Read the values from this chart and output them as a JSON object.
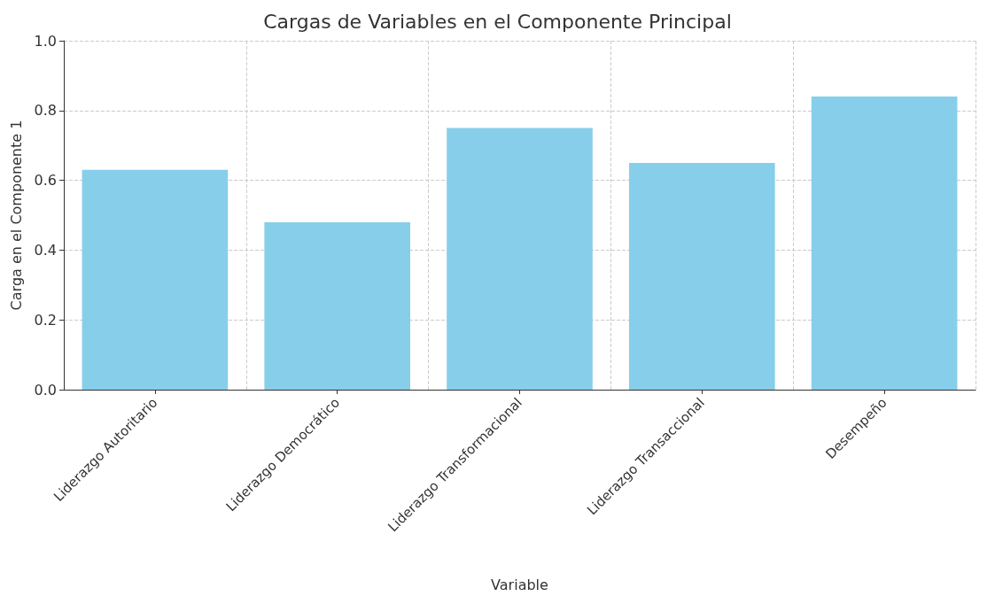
{
  "chart_data": {
    "type": "bar",
    "title": "Cargas de Variables en el Componente Principal",
    "xlabel": "Variable",
    "ylabel": "Carga en el Componente 1",
    "categories": [
      "Liderazgo Autoritario",
      "Liderazgo Democrático",
      "Liderazgo Transformacional",
      "Liderazgo Transaccional",
      "Desempeño"
    ],
    "values": [
      0.63,
      0.48,
      0.75,
      0.65,
      0.84
    ],
    "color": "#87ceeb",
    "ylim": [
      0,
      1
    ],
    "yticks": [
      {
        "value": 0,
        "label": "0.0"
      },
      0.2,
      0.4,
      0.6,
      0.8,
      {
        "value": 1,
        "label": "1.0"
      }
    ],
    "grid": true
  }
}
